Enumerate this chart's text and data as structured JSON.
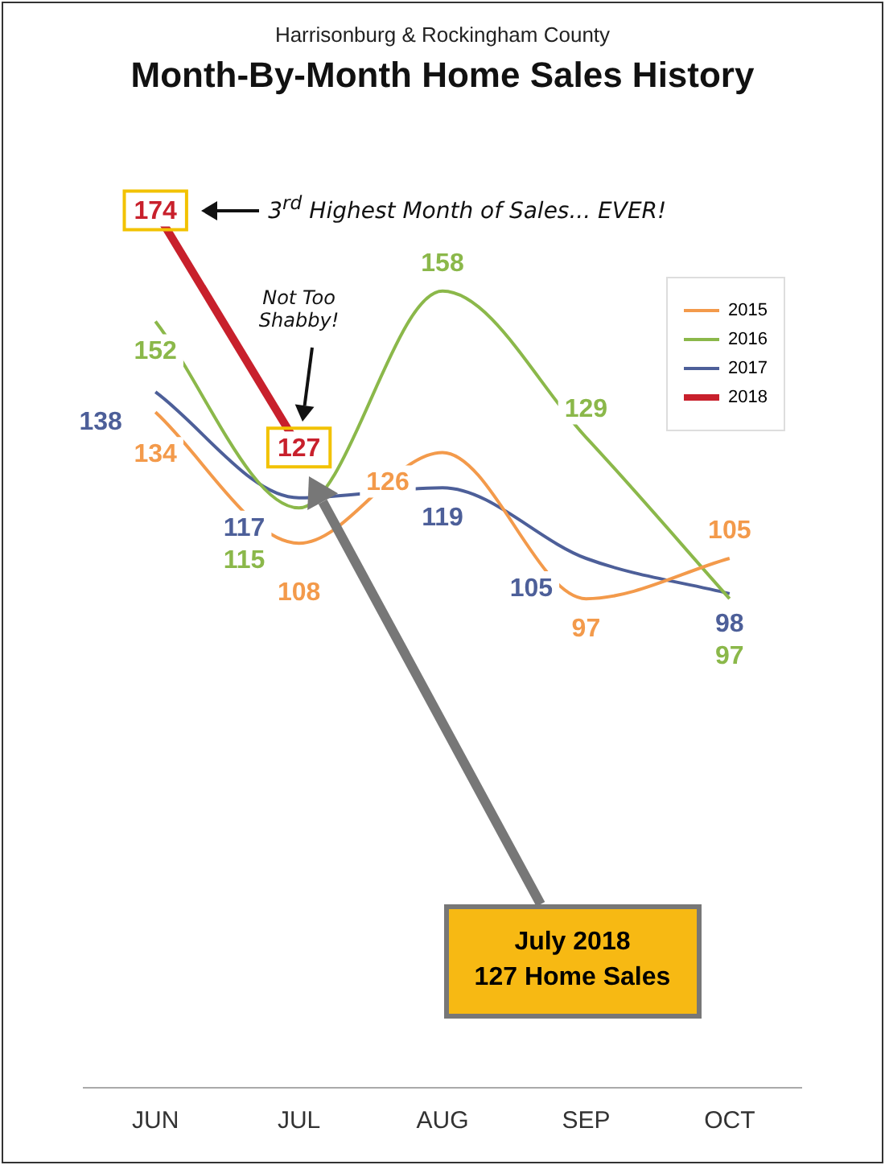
{
  "chart_data": {
    "type": "line",
    "subtitle": "Harrisonburg & Rockingham County",
    "title": "Month-By-Month Home Sales History",
    "categories": [
      "JUN",
      "JUL",
      "AUG",
      "SEP",
      "OCT"
    ],
    "series": [
      {
        "name": "2015",
        "color": "#f39a4b",
        "values": [
          134,
          108,
          126,
          97,
          105
        ]
      },
      {
        "name": "2016",
        "color": "#8bb84a",
        "values": [
          152,
          115,
          158,
          129,
          97
        ]
      },
      {
        "name": "2017",
        "color": "#4d5f99",
        "values": [
          138,
          117,
          119,
          105,
          98
        ]
      },
      {
        "name": "2018",
        "color": "#c8202c",
        "values": [
          174,
          127,
          null,
          null,
          null
        ],
        "marker": "square"
      }
    ],
    "tick_labels": "x",
    "legend": "top right",
    "line_style": "solid",
    "data_labels": true,
    "annotations": [
      "3$^{rd}$ Highest Month of Sales... EVER!",
      "Not Too Shabby!",
      "July 2018\n127 Home Sales"
    ]
  }
}
